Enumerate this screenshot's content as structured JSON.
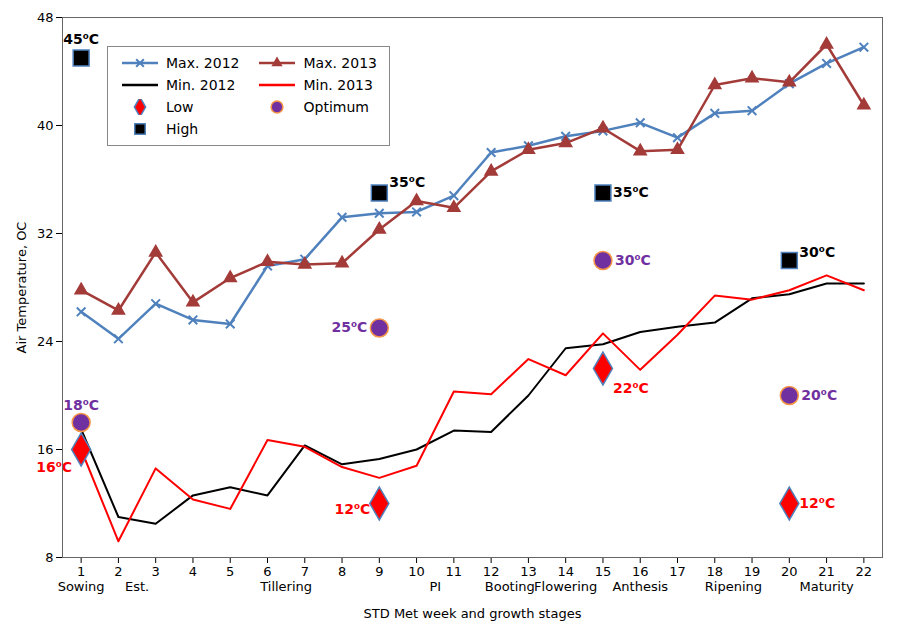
{
  "chart_data": {
    "type": "line",
    "x_label": "STD Met week and growth stages",
    "y_label": "Air Temperature, OC",
    "x": [
      1,
      2,
      3,
      4,
      5,
      6,
      7,
      8,
      9,
      10,
      11,
      12,
      13,
      14,
      15,
      16,
      17,
      18,
      19,
      20,
      21,
      22
    ],
    "xlim": [
      0.5,
      22.5
    ],
    "xticks": [
      1,
      2,
      3,
      4,
      5,
      6,
      7,
      8,
      9,
      10,
      11,
      12,
      13,
      14,
      15,
      16,
      17,
      18,
      19,
      20,
      21,
      22
    ],
    "ylim": [
      8,
      48
    ],
    "yticks": [
      8,
      16,
      24,
      32,
      40,
      48
    ],
    "grid": false,
    "legend": "top-left",
    "data_labels": true,
    "series": [
      {
        "name": "Max. 2012",
        "color": "#4f81bd",
        "marker": "x",
        "line_style": "solid",
        "values": [
          26.2,
          24.2,
          26.8,
          25.6,
          25.3,
          29.6,
          30.1,
          33.2,
          33.5,
          33.6,
          34.8,
          38.0,
          38.5,
          39.2,
          39.6,
          40.2,
          39.1,
          40.9,
          41.1,
          43.1,
          44.6,
          45.8
        ]
      },
      {
        "name": "Max. 2013",
        "color": "#a33b39",
        "marker": "triangle",
        "line_style": "solid",
        "values": [
          27.8,
          26.3,
          30.6,
          26.9,
          28.7,
          29.9,
          29.7,
          29.8,
          32.3,
          34.4,
          33.9,
          36.6,
          38.2,
          38.7,
          39.8,
          38.1,
          38.2,
          43.0,
          43.5,
          43.2,
          46.0,
          41.5
        ]
      },
      {
        "name": "Min. 2012",
        "color": "#000000",
        "line_style": "solid",
        "values": [
          17.5,
          11.0,
          10.5,
          12.6,
          13.2,
          12.6,
          16.3,
          14.9,
          15.3,
          16.0,
          17.4,
          17.3,
          20.0,
          23.5,
          23.8,
          24.7,
          25.1,
          25.4,
          27.2,
          27.5,
          28.3,
          28.3
        ]
      },
      {
        "name": "Min. 2013",
        "color": "#ff0000",
        "line_style": "solid",
        "values": [
          16.0,
          9.2,
          14.6,
          12.3,
          11.6,
          16.7,
          16.2,
          14.7,
          13.9,
          14.8,
          20.3,
          20.1,
          22.7,
          21.5,
          24.6,
          21.9,
          24.5,
          27.4,
          27.1,
          27.8,
          28.9,
          27.8
        ]
      },
      {
        "name": "Low",
        "type": "scatter",
        "color": "#ff0000",
        "marker": "diamond",
        "values": [
          16,
          null,
          null,
          null,
          null,
          null,
          null,
          null,
          12,
          null,
          null,
          null,
          null,
          null,
          22,
          null,
          null,
          null,
          null,
          12,
          null,
          null
        ],
        "value_labels": [
          "16⁰C",
          null,
          null,
          null,
          null,
          null,
          null,
          null,
          "12⁰C",
          null,
          null,
          null,
          null,
          null,
          "22⁰C",
          null,
          null,
          null,
          null,
          "12⁰C",
          null,
          null
        ]
      },
      {
        "name": "Optimum",
        "type": "scatter",
        "color": "#7030a0",
        "marker": "circle",
        "values": [
          18,
          null,
          null,
          null,
          null,
          null,
          null,
          null,
          25,
          null,
          null,
          null,
          null,
          null,
          30,
          null,
          null,
          null,
          null,
          20,
          null,
          null
        ],
        "value_labels": [
          "18⁰C",
          null,
          null,
          null,
          null,
          null,
          null,
          null,
          "25⁰C",
          null,
          null,
          null,
          null,
          null,
          "30⁰C",
          null,
          null,
          null,
          null,
          "20⁰C",
          null,
          null
        ]
      },
      {
        "name": "High",
        "type": "scatter",
        "color": "#000000",
        "marker": "square",
        "values": [
          45,
          null,
          null,
          null,
          null,
          null,
          null,
          null,
          35,
          null,
          null,
          null,
          null,
          null,
          35,
          null,
          null,
          null,
          null,
          30,
          null,
          null
        ],
        "value_labels": [
          "45⁰C",
          null,
          null,
          null,
          null,
          null,
          null,
          null,
          "35⁰C",
          null,
          null,
          null,
          null,
          null,
          "35⁰C",
          null,
          null,
          null,
          null,
          "30⁰C",
          null,
          null
        ]
      }
    ],
    "stages": [
      {
        "label": "Sowing",
        "from": 1,
        "to": 1
      },
      {
        "label": "Est.",
        "from": 2,
        "to": 3
      },
      {
        "label": "Tillering",
        "from": 4,
        "to": 9
      },
      {
        "label": "PI",
        "from": 10,
        "to": 11
      },
      {
        "label": "Booting",
        "from": 12,
        "to": 13
      },
      {
        "label": "Flowering",
        "from": 14,
        "to": 14
      },
      {
        "label": "Anthesis",
        "from": 15,
        "to": 17
      },
      {
        "label": "Ripening",
        "from": 18,
        "to": 19
      },
      {
        "label": "Maturity",
        "from": 20,
        "to": 22
      }
    ]
  }
}
